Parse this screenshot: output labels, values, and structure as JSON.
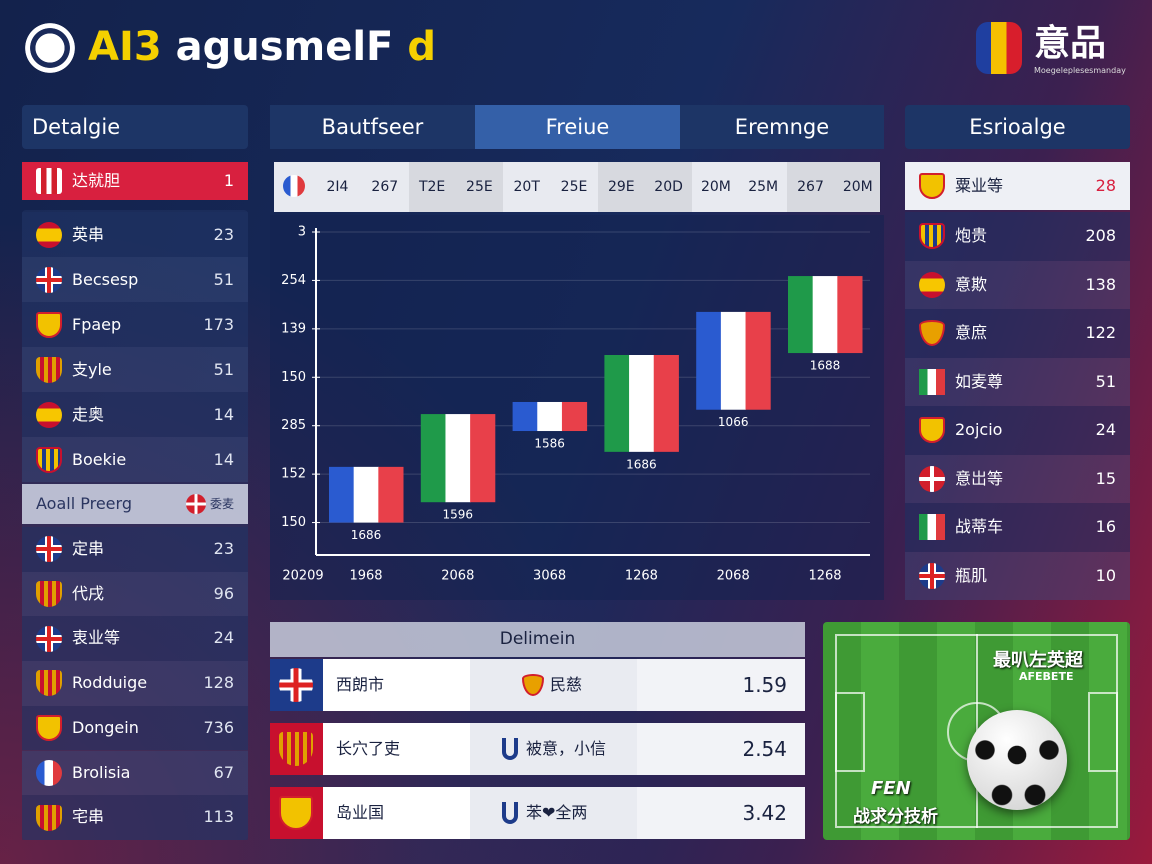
{
  "header": {
    "title_parts": [
      "AI3",
      "agusmelF",
      "d"
    ],
    "brand": "意品",
    "brand_sub": "Moegeleplesesmanday"
  },
  "left_panel": {
    "title": "Detalgie",
    "highlight": {
      "name": "达就胆",
      "value": "1"
    },
    "rows": [
      {
        "name": "英串",
        "value": "23"
      },
      {
        "name": "Becsesp",
        "value": "51"
      },
      {
        "name": "Fpaep",
        "value": "173"
      },
      {
        "name": "支yle",
        "value": "51"
      },
      {
        "name": "走奥",
        "value": "14"
      },
      {
        "name": "Boekie",
        "value": "14"
      }
    ],
    "section": {
      "title": "Aoall Preerg",
      "badge": "委麦"
    },
    "rows2": [
      {
        "name": "定串",
        "value": "23"
      },
      {
        "name": "代戌",
        "value": "96"
      },
      {
        "name": "衷业等",
        "value": "24"
      },
      {
        "name": "Rodduige",
        "value": "128"
      },
      {
        "name": "Dongein",
        "value": "736"
      },
      {
        "name": "Brolisia",
        "value": "67"
      },
      {
        "name": "宅串",
        "value": "113"
      }
    ]
  },
  "tabs": [
    "Bautfseer",
    "Freiue",
    "Eremnge"
  ],
  "active_tab": 1,
  "chart": {
    "header_cells": [
      "2I4",
      "267",
      "T2E",
      "25E",
      "20T",
      "25E",
      "29E",
      "20D",
      "20M",
      "25M",
      "267",
      "20M"
    ],
    "ylim": [
      0.33,
      7
    ],
    "yticks": [
      {
        "value": 7,
        "label": "3"
      },
      {
        "value": 6,
        "label": "254"
      },
      {
        "value": 5,
        "label": "139"
      },
      {
        "value": 4,
        "label": "150"
      },
      {
        "value": 3,
        "label": "285"
      },
      {
        "value": 2,
        "label": "152"
      },
      {
        "value": 1,
        "label": "150"
      }
    ],
    "x_labels": [
      "20209",
      "1968",
      "2068",
      "3068",
      "1268",
      "2068",
      "1268"
    ],
    "bars": [
      {
        "low": 1.0,
        "high": 2.15,
        "label": "1686",
        "colors": [
          "#2a5bd0",
          "#ffffff",
          "#e8404a"
        ]
      },
      {
        "low": 1.42,
        "high": 3.24,
        "label": "1596",
        "colors": [
          "#1f9a4a",
          "#ffffff",
          "#e8404a"
        ]
      },
      {
        "low": 2.89,
        "high": 3.49,
        "label": "1586",
        "colors": [
          "#2a5bd0",
          "#ffffff",
          "#e8404a"
        ]
      },
      {
        "low": 2.46,
        "high": 4.46,
        "label": "1686",
        "colors": [
          "#1f9a4a",
          "#ffffff",
          "#e8404a"
        ]
      },
      {
        "low": 3.33,
        "high": 5.35,
        "label": "1066",
        "colors": [
          "#2a5bd0",
          "#ffffff",
          "#e8404a"
        ]
      },
      {
        "low": 4.5,
        "high": 6.09,
        "label": "1688",
        "colors": [
          "#1f9a4a",
          "#ffffff",
          "#e8404a"
        ]
      }
    ]
  },
  "right_panel": {
    "title": "Esrioalge",
    "highlight": {
      "name": "粟业等",
      "value": "28"
    },
    "rows": [
      {
        "name": "炮贵",
        "value": "208"
      },
      {
        "name": "意欺",
        "value": "138"
      },
      {
        "name": "意庶",
        "value": "122"
      },
      {
        "name": "如麦尊",
        "value": "51"
      },
      {
        "name": "2ojcio",
        "value": "24"
      },
      {
        "name": "意岀等",
        "value": "15"
      },
      {
        "name": "战蒂车",
        "value": "16"
      },
      {
        "name": "瓶肌",
        "value": "10"
      }
    ]
  },
  "table": {
    "title": "Delimein",
    "rows": [
      {
        "team": "西朗市",
        "opponent": "民慈",
        "value": "1.59"
      },
      {
        "team": "长穴了吏",
        "opponent": "被意，小信",
        "value": "2.54"
      },
      {
        "team": "岛业国",
        "opponent": "苯❤全两",
        "value": "3.42"
      }
    ]
  },
  "promo": {
    "title": "最叭左英超",
    "subtitle": "AFEBETE",
    "tag": "FEN",
    "caption": "战求分技析"
  }
}
